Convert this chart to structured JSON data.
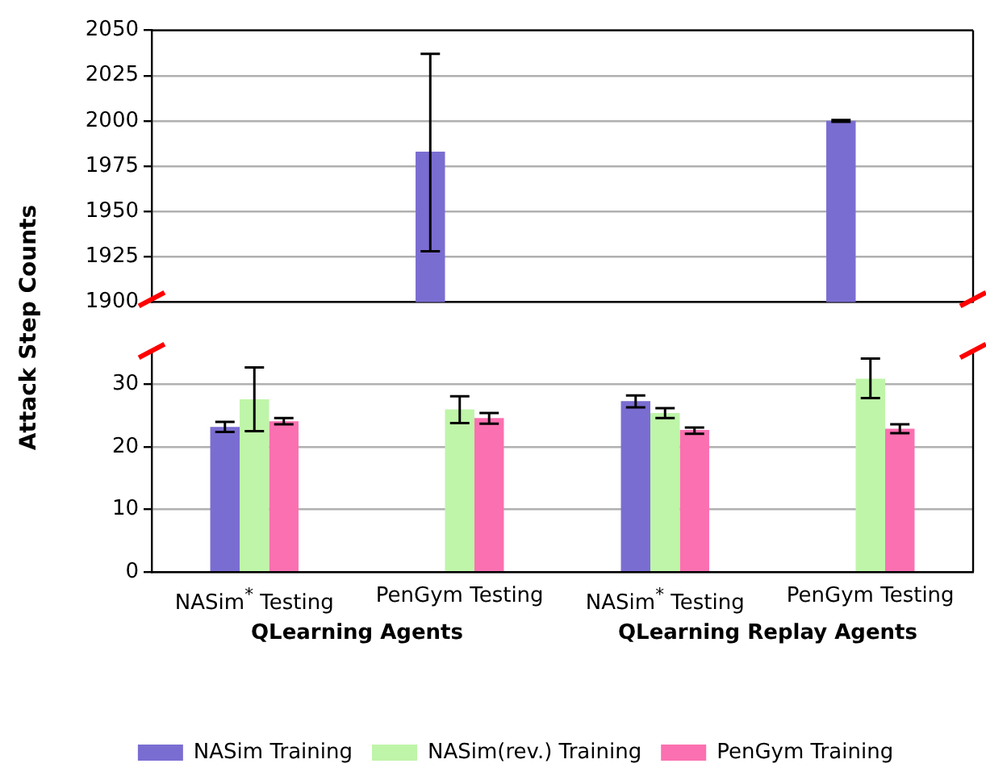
{
  "chart_data": [
    {
      "type": "bar",
      "categories": [
        null,
        null,
        null,
        null
      ],
      "series": [
        {
          "color": "#7a6dd1",
          "values": [
            null,
            1983,
            null,
            2000
          ],
          "errors": [
            null,
            [
              1928,
              2037
            ],
            null,
            [
              1999.5,
              2000.5
            ]
          ]
        },
        {
          "color": "#bff5a9",
          "values": [
            null,
            null,
            null,
            null
          ]
        },
        {
          "color": "#fb70b0",
          "values": [
            null,
            null,
            null,
            null
          ]
        }
      ],
      "ylabel": "Attack Step Counts",
      "ylim": [
        1900,
        2050
      ],
      "yticks": [
        1900,
        1925,
        1950,
        1975,
        2000,
        2025,
        2050
      ],
      "grid": "y",
      "tick_labels": "y",
      "legend": false
    },
    {
      "type": "bar",
      "categories": [
        "NASim$^{*}$ Testing",
        "PenGym Testing",
        "NASim$^{*}$ Testing",
        "PenGym Testing"
      ],
      "series": [
        {
          "name": "NASim Training",
          "color": "#7a6dd1",
          "values": [
            23.2,
            null,
            27.3,
            null
          ],
          "errors": [
            [
              22.4,
              24
            ],
            null,
            [
              26.3,
              28.2
            ],
            null
          ]
        },
        {
          "name": "NASim(rev.) Training",
          "color": "#bff5a9",
          "values": [
            27.6,
            26,
            25.4,
            30.9
          ],
          "errors": [
            [
              22.5,
              32.7
            ],
            [
              23.8,
              28.1
            ],
            [
              24.6,
              26.2
            ],
            [
              27.8,
              34.1
            ]
          ]
        },
        {
          "name": "PenGym Training",
          "color": "#fb70b0",
          "values": [
            24.1,
            24.6,
            22.7,
            22.9
          ],
          "errors": [
            [
              23.6,
              24.6
            ],
            [
              23.7,
              25.4
            ],
            [
              22.1,
              23.1
            ],
            [
              22.2,
              23.6
            ]
          ]
        }
      ],
      "ylim": [
        0,
        35
      ],
      "yticks": [
        0,
        10,
        20,
        30
      ],
      "grid": "y",
      "legend": "bottom",
      "annotations": [
        "QLearning Agents",
        "QLearning Replay Agents"
      ]
    }
  ]
}
